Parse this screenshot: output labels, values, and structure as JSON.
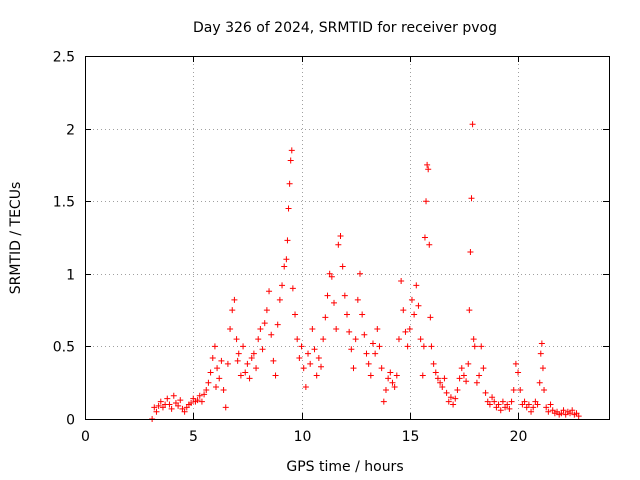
{
  "chart_data": {
    "type": "scatter",
    "title": "Day 326 of 2024, SRMTID for receiver pvog",
    "xlabel": "GPS time / hours",
    "ylabel": "SRMTID / TECUs",
    "xlim": [
      0,
      24.2
    ],
    "ylim": [
      0,
      2.5
    ],
    "xticks": [
      0,
      5,
      10,
      15,
      20
    ],
    "xtick_labels": [
      "0",
      "5",
      "10",
      "15",
      "20"
    ],
    "yticks": [
      0,
      0.5,
      1,
      1.5,
      2,
      2.5
    ],
    "ytick_labels": [
      "0",
      "0.5",
      "1",
      "1.5",
      "2",
      "2.5"
    ],
    "grid": true,
    "marker": "+",
    "color": "#ff0000",
    "series": [
      {
        "name": "SRMTID",
        "points": [
          [
            3.1,
            0.0
          ],
          [
            3.2,
            0.08
          ],
          [
            3.3,
            0.05
          ],
          [
            3.4,
            0.09
          ],
          [
            3.5,
            0.12
          ],
          [
            3.6,
            0.08
          ],
          [
            3.7,
            0.1
          ],
          [
            3.8,
            0.14
          ],
          [
            3.9,
            0.1
          ],
          [
            4.0,
            0.07
          ],
          [
            4.1,
            0.16
          ],
          [
            4.2,
            0.11
          ],
          [
            4.3,
            0.09
          ],
          [
            4.4,
            0.13
          ],
          [
            4.5,
            0.07
          ],
          [
            4.6,
            0.05
          ],
          [
            4.7,
            0.08
          ],
          [
            4.8,
            0.1
          ],
          [
            4.9,
            0.11
          ],
          [
            5.0,
            0.14
          ],
          [
            5.1,
            0.12
          ],
          [
            5.2,
            0.13
          ],
          [
            5.3,
            0.16
          ],
          [
            5.4,
            0.12
          ],
          [
            5.5,
            0.17
          ],
          [
            5.6,
            0.2
          ],
          [
            5.7,
            0.25
          ],
          [
            5.8,
            0.32
          ],
          [
            5.9,
            0.42
          ],
          [
            6.0,
            0.5
          ],
          [
            6.05,
            0.22
          ],
          [
            6.1,
            0.35
          ],
          [
            6.2,
            0.28
          ],
          [
            6.3,
            0.4
          ],
          [
            6.4,
            0.2
          ],
          [
            6.5,
            0.08
          ],
          [
            6.6,
            0.38
          ],
          [
            6.7,
            0.62
          ],
          [
            6.8,
            0.75
          ],
          [
            6.9,
            0.82
          ],
          [
            7.0,
            0.55
          ],
          [
            7.05,
            0.4
          ],
          [
            7.1,
            0.45
          ],
          [
            7.2,
            0.3
          ],
          [
            7.3,
            0.5
          ],
          [
            7.4,
            0.32
          ],
          [
            7.5,
            0.38
          ],
          [
            7.6,
            0.28
          ],
          [
            7.7,
            0.42
          ],
          [
            7.8,
            0.45
          ],
          [
            7.9,
            0.35
          ],
          [
            8.0,
            0.55
          ],
          [
            8.1,
            0.62
          ],
          [
            8.2,
            0.48
          ],
          [
            8.3,
            0.66
          ],
          [
            8.4,
            0.75
          ],
          [
            8.5,
            0.88
          ],
          [
            8.6,
            0.58
          ],
          [
            8.7,
            0.4
          ],
          [
            8.8,
            0.3
          ],
          [
            8.9,
            0.65
          ],
          [
            9.0,
            0.82
          ],
          [
            9.1,
            0.92
          ],
          [
            9.2,
            1.05
          ],
          [
            9.3,
            1.1
          ],
          [
            9.35,
            1.23
          ],
          [
            9.4,
            1.45
          ],
          [
            9.45,
            1.62
          ],
          [
            9.5,
            1.78
          ],
          [
            9.55,
            1.85
          ],
          [
            9.6,
            0.9
          ],
          [
            9.7,
            0.72
          ],
          [
            9.8,
            0.55
          ],
          [
            9.9,
            0.42
          ],
          [
            10.0,
            0.5
          ],
          [
            10.1,
            0.35
          ],
          [
            10.2,
            0.22
          ],
          [
            10.3,
            0.45
          ],
          [
            10.4,
            0.38
          ],
          [
            10.5,
            0.62
          ],
          [
            10.6,
            0.48
          ],
          [
            10.7,
            0.3
          ],
          [
            10.8,
            0.42
          ],
          [
            10.9,
            0.36
          ],
          [
            11.0,
            0.55
          ],
          [
            11.1,
            0.7
          ],
          [
            11.2,
            0.85
          ],
          [
            11.3,
            1.0
          ],
          [
            11.4,
            0.98
          ],
          [
            11.5,
            0.8
          ],
          [
            11.6,
            0.62
          ],
          [
            11.7,
            1.2
          ],
          [
            11.8,
            1.26
          ],
          [
            11.9,
            1.05
          ],
          [
            12.0,
            0.85
          ],
          [
            12.1,
            0.72
          ],
          [
            12.2,
            0.6
          ],
          [
            12.3,
            0.48
          ],
          [
            12.4,
            0.35
          ],
          [
            12.5,
            0.55
          ],
          [
            12.6,
            0.82
          ],
          [
            12.7,
            1.0
          ],
          [
            12.8,
            0.72
          ],
          [
            12.9,
            0.58
          ],
          [
            13.0,
            0.45
          ],
          [
            13.1,
            0.38
          ],
          [
            13.2,
            0.3
          ],
          [
            13.3,
            0.52
          ],
          [
            13.4,
            0.45
          ],
          [
            13.5,
            0.62
          ],
          [
            13.6,
            0.5
          ],
          [
            13.7,
            0.35
          ],
          [
            13.8,
            0.12
          ],
          [
            13.9,
            0.2
          ],
          [
            14.0,
            0.28
          ],
          [
            14.1,
            0.32
          ],
          [
            14.2,
            0.25
          ],
          [
            14.3,
            0.22
          ],
          [
            14.4,
            0.3
          ],
          [
            14.5,
            0.55
          ],
          [
            14.6,
            0.95
          ],
          [
            14.7,
            0.75
          ],
          [
            14.8,
            0.6
          ],
          [
            14.9,
            0.5
          ],
          [
            15.0,
            0.62
          ],
          [
            15.1,
            0.82
          ],
          [
            15.2,
            0.72
          ],
          [
            15.3,
            0.92
          ],
          [
            15.4,
            0.78
          ],
          [
            15.5,
            0.55
          ],
          [
            15.6,
            0.3
          ],
          [
            15.65,
            0.5
          ],
          [
            15.7,
            1.25
          ],
          [
            15.75,
            1.5
          ],
          [
            15.8,
            1.75
          ],
          [
            15.85,
            1.72
          ],
          [
            15.9,
            1.2
          ],
          [
            15.95,
            0.7
          ],
          [
            16.0,
            0.5
          ],
          [
            16.1,
            0.38
          ],
          [
            16.2,
            0.32
          ],
          [
            16.3,
            0.28
          ],
          [
            16.4,
            0.25
          ],
          [
            16.5,
            0.22
          ],
          [
            16.6,
            0.28
          ],
          [
            16.7,
            0.18
          ],
          [
            16.8,
            0.12
          ],
          [
            16.9,
            0.15
          ],
          [
            17.0,
            0.1
          ],
          [
            17.1,
            0.14
          ],
          [
            17.2,
            0.2
          ],
          [
            17.3,
            0.28
          ],
          [
            17.4,
            0.35
          ],
          [
            17.5,
            0.3
          ],
          [
            17.6,
            0.26
          ],
          [
            17.7,
            0.38
          ],
          [
            17.75,
            0.75
          ],
          [
            17.8,
            1.15
          ],
          [
            17.85,
            1.52
          ],
          [
            17.9,
            2.03
          ],
          [
            17.95,
            0.55
          ],
          [
            18.0,
            0.5
          ],
          [
            18.1,
            0.25
          ],
          [
            18.2,
            0.3
          ],
          [
            18.3,
            0.5
          ],
          [
            18.4,
            0.35
          ],
          [
            18.5,
            0.18
          ],
          [
            18.6,
            0.12
          ],
          [
            18.7,
            0.1
          ],
          [
            18.8,
            0.15
          ],
          [
            18.9,
            0.12
          ],
          [
            19.0,
            0.08
          ],
          [
            19.1,
            0.1
          ],
          [
            19.2,
            0.06
          ],
          [
            19.3,
            0.12
          ],
          [
            19.4,
            0.08
          ],
          [
            19.5,
            0.1
          ],
          [
            19.6,
            0.07
          ],
          [
            19.7,
            0.12
          ],
          [
            19.8,
            0.2
          ],
          [
            19.9,
            0.38
          ],
          [
            20.0,
            0.32
          ],
          [
            20.1,
            0.2
          ],
          [
            20.2,
            0.1
          ],
          [
            20.3,
            0.12
          ],
          [
            20.4,
            0.08
          ],
          [
            20.5,
            0.1
          ],
          [
            20.6,
            0.05
          ],
          [
            20.7,
            0.08
          ],
          [
            20.8,
            0.12
          ],
          [
            20.9,
            0.1
          ],
          [
            21.0,
            0.25
          ],
          [
            21.05,
            0.45
          ],
          [
            21.1,
            0.52
          ],
          [
            21.15,
            0.35
          ],
          [
            21.2,
            0.2
          ],
          [
            21.3,
            0.08
          ],
          [
            21.4,
            0.05
          ],
          [
            21.5,
            0.1
          ],
          [
            21.6,
            0.06
          ],
          [
            21.7,
            0.04
          ],
          [
            21.8,
            0.05
          ],
          [
            21.9,
            0.03
          ],
          [
            22.0,
            0.04
          ],
          [
            22.1,
            0.06
          ],
          [
            22.2,
            0.03
          ],
          [
            22.3,
            0.05
          ],
          [
            22.4,
            0.04
          ],
          [
            22.5,
            0.06
          ],
          [
            22.6,
            0.03
          ],
          [
            22.7,
            0.04
          ],
          [
            22.8,
            0.02
          ]
        ]
      }
    ]
  }
}
